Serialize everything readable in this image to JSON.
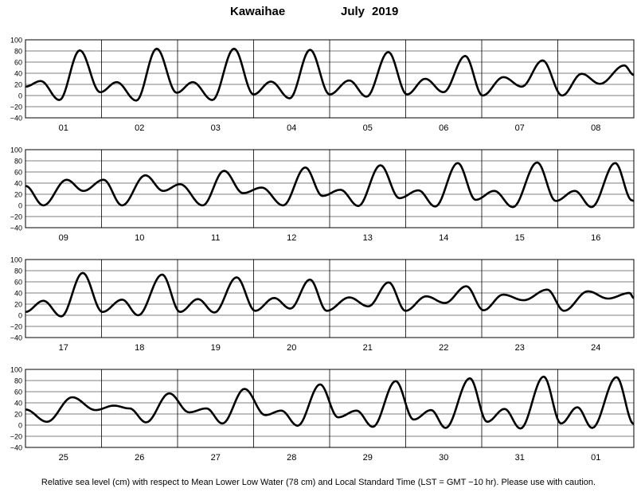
{
  "title": {
    "station": "Kawaihae",
    "month": "July",
    "year": "2019"
  },
  "footer": "Relative sea level (cm) with respect to Mean Lower Low Water (78 cm) and Local Standard Time (LST = GMT −10 hr). Please use with caution.",
  "colors": {
    "curve": "#000000",
    "grid": "#000000",
    "background": "#ffffff"
  },
  "chart_data": [
    {
      "type": "line",
      "title": "",
      "xlabel": "",
      "ylabel": "",
      "ylim": [
        -40,
        100
      ],
      "yticks": [
        "100",
        "80",
        "60",
        "40",
        "20",
        "0",
        "−20",
        "−40"
      ],
      "categories": [
        "01",
        "02",
        "03",
        "04",
        "05",
        "06",
        "07",
        "08"
      ],
      "extrema": [
        [
          0,
          16
        ],
        [
          0.35,
          26
        ],
        [
          0.78,
          -8
        ],
        [
          1.25,
          81
        ],
        [
          1.72,
          6
        ],
        [
          2.1,
          24
        ],
        [
          2.55,
          -9
        ],
        [
          3.02,
          84
        ],
        [
          3.48,
          5
        ],
        [
          3.85,
          24
        ],
        [
          4.3,
          -8
        ],
        [
          4.8,
          84
        ],
        [
          5.25,
          2
        ],
        [
          5.65,
          25
        ],
        [
          6.08,
          -5
        ],
        [
          6.55,
          82
        ],
        [
          7.0,
          2
        ],
        [
          7.45,
          27
        ],
        [
          7.85,
          -2
        ],
        [
          8.35,
          78
        ],
        [
          8.78,
          2
        ],
        [
          9.2,
          30
        ],
        [
          9.62,
          6
        ],
        [
          10.12,
          71
        ],
        [
          10.52,
          0
        ],
        [
          11.0,
          33
        ],
        [
          11.42,
          16
        ],
        [
          11.9,
          63
        ],
        [
          12.35,
          0
        ],
        [
          12.8,
          39
        ],
        [
          13.22,
          21
        ],
        [
          13.78,
          54
        ],
        [
          14.0,
          37
        ]
      ]
    },
    {
      "type": "line",
      "title": "",
      "xlabel": "",
      "ylabel": "",
      "ylim": [
        -40,
        100
      ],
      "yticks": [
        "100",
        "80",
        "60",
        "40",
        "20",
        "0",
        "−20",
        "−40"
      ],
      "categories": [
        "09",
        "10",
        "11",
        "12",
        "13",
        "14",
        "15",
        "16"
      ],
      "extrema": [
        [
          0,
          35
        ],
        [
          0.5,
          0
        ],
        [
          1.15,
          46
        ],
        [
          1.62,
          26
        ],
        [
          2.18,
          46
        ],
        [
          2.7,
          0
        ],
        [
          3.35,
          54
        ],
        [
          3.85,
          26
        ],
        [
          4.32,
          38
        ],
        [
          4.95,
          0
        ],
        [
          5.55,
          62
        ],
        [
          6.08,
          22
        ],
        [
          6.6,
          32
        ],
        [
          7.2,
          0
        ],
        [
          7.82,
          68
        ],
        [
          8.3,
          17
        ],
        [
          8.8,
          28
        ],
        [
          9.3,
          -1
        ],
        [
          9.92,
          72
        ],
        [
          10.45,
          13
        ],
        [
          10.98,
          27
        ],
        [
          11.45,
          -2
        ],
        [
          12.08,
          76
        ],
        [
          12.58,
          10
        ],
        [
          13.1,
          26
        ],
        [
          13.62,
          -3
        ],
        [
          14.3,
          77
        ],
        [
          14.82,
          8
        ],
        [
          15.35,
          26
        ],
        [
          15.82,
          -3
        ],
        [
          16.48,
          76
        ],
        [
          16.95,
          9
        ],
        [
          17.0,
          8
        ]
      ]
    },
    {
      "type": "line",
      "title": "",
      "xlabel": "",
      "ylabel": "",
      "ylim": [
        -40,
        100
      ],
      "yticks": [
        "100",
        "80",
        "60",
        "40",
        "20",
        "0",
        "−20",
        "−40"
      ],
      "categories": [
        "17",
        "18",
        "19",
        "20",
        "21",
        "22",
        "23",
        "24"
      ],
      "extrema": [
        [
          0,
          6
        ],
        [
          0.5,
          26
        ],
        [
          1.0,
          -2
        ],
        [
          1.6,
          76
        ],
        [
          2.15,
          6
        ],
        [
          2.7,
          28
        ],
        [
          3.15,
          0
        ],
        [
          3.82,
          73
        ],
        [
          4.32,
          6
        ],
        [
          4.82,
          29
        ],
        [
          5.28,
          5
        ],
        [
          5.9,
          68
        ],
        [
          6.42,
          8
        ],
        [
          6.95,
          31
        ],
        [
          7.4,
          12
        ],
        [
          7.95,
          64
        ],
        [
          8.42,
          8
        ],
        [
          9.05,
          32
        ],
        [
          9.58,
          16
        ],
        [
          10.15,
          59
        ],
        [
          10.62,
          8
        ],
        [
          11.2,
          34
        ],
        [
          11.72,
          22
        ],
        [
          12.32,
          52
        ],
        [
          12.8,
          9
        ],
        [
          13.35,
          37
        ],
        [
          13.92,
          27
        ],
        [
          14.58,
          46
        ],
        [
          15.05,
          8
        ],
        [
          15.72,
          43
        ],
        [
          16.28,
          30
        ],
        [
          16.88,
          40
        ],
        [
          17.0,
          31
        ]
      ]
    },
    {
      "type": "line",
      "title": "",
      "xlabel": "",
      "ylabel": "",
      "ylim": [
        -40,
        100
      ],
      "yticks": [
        "100",
        "80",
        "60",
        "40",
        "20",
        "0",
        "−20",
        "−40"
      ],
      "categories": [
        "25",
        "26",
        "27",
        "28",
        "29",
        "30",
        "31",
        "01"
      ],
      "extrema": [
        [
          0,
          28
        ],
        [
          0.62,
          6
        ],
        [
          1.35,
          50
        ],
        [
          2.02,
          27
        ],
        [
          2.55,
          35
        ],
        [
          3.0,
          30
        ],
        [
          3.48,
          5
        ],
        [
          4.15,
          57
        ],
        [
          4.72,
          23
        ],
        [
          5.22,
          30
        ],
        [
          5.68,
          3
        ],
        [
          6.32,
          65
        ],
        [
          6.92,
          18
        ],
        [
          7.38,
          26
        ],
        [
          7.85,
          -1
        ],
        [
          8.5,
          73
        ],
        [
          9.02,
          14
        ],
        [
          9.55,
          26
        ],
        [
          10.02,
          -3
        ],
        [
          10.68,
          79
        ],
        [
          11.2,
          10
        ],
        [
          11.7,
          27
        ],
        [
          12.12,
          -5
        ],
        [
          12.82,
          84
        ],
        [
          13.32,
          6
        ],
        [
          13.82,
          29
        ],
        [
          14.28,
          -6
        ],
        [
          14.95,
          87
        ],
        [
          15.45,
          3
        ],
        [
          15.92,
          32
        ],
        [
          16.35,
          -5
        ],
        [
          17.05,
          86
        ],
        [
          17.55,
          2
        ]
      ]
    }
  ]
}
